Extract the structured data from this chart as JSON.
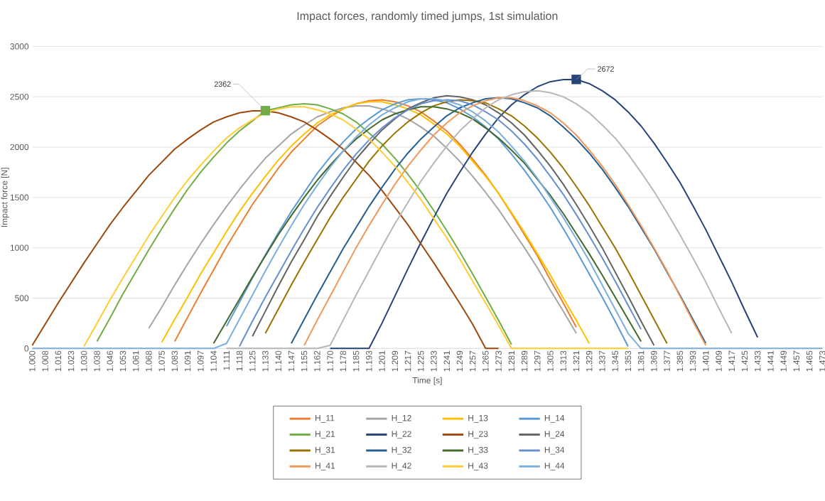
{
  "chart_data": {
    "type": "line",
    "title": "Impact forces, randomly timed jumps, 1st simulation",
    "xlabel": "Time [s]",
    "ylabel": "Impact force [N]",
    "categories": [
      "1.000",
      "1.008",
      "1.016",
      "1.023",
      "1.030",
      "1.038",
      "1.046",
      "1.053",
      "1.061",
      "1.068",
      "1.075",
      "1.083",
      "1.091",
      "1.097",
      "1.104",
      "1.111",
      "1.118",
      "1.125",
      "1.133",
      "1.140",
      "1.147",
      "1.155",
      "1.162",
      "1.170",
      "1.178",
      "1.185",
      "1.193",
      "1.201",
      "1.209",
      "1.217",
      "1.225",
      "1.233",
      "1.241",
      "1.249",
      "1.257",
      "1.265",
      "1.273",
      "1.281",
      "1.289",
      "1.297",
      "1.305",
      "1.313",
      "1.321",
      "1.329",
      "1.337",
      "1.345",
      "1.353",
      "1.361",
      "1.369",
      "1.377",
      "1.385",
      "1.393",
      "1.401",
      "1.409",
      "1.417",
      "1.425",
      "1.433",
      "1.441",
      "1.449",
      "1.457",
      "1.465",
      "1.473"
    ],
    "ylim": [
      0,
      3000
    ],
    "yticks": [
      0,
      500,
      1000,
      1500,
      2000,
      2500,
      3000
    ],
    "grid": "y",
    "legend": "bottom",
    "series": [
      {
        "name": "H_11",
        "color": "#ED7D31",
        "values": [
          null,
          null,
          null,
          null,
          null,
          null,
          null,
          null,
          null,
          null,
          null,
          70,
          310,
          550,
          780,
          1010,
          1220,
          1430,
          1610,
          1790,
          1950,
          2080,
          2210,
          2300,
          2380,
          2430,
          2460,
          2470,
          2450,
          2410,
          2350,
          2260,
          2160,
          2030,
          1880,
          1720,
          1540,
          1340,
          1130,
          920,
          680,
          450,
          210,
          null,
          null,
          null,
          null,
          null,
          null,
          null,
          null,
          null,
          null,
          null,
          null,
          null,
          null,
          null,
          null,
          null,
          null,
          null
        ]
      },
      {
        "name": "H_12",
        "color": "#A5A5A5",
        "values": [
          null,
          null,
          null,
          null,
          null,
          null,
          null,
          null,
          null,
          200,
          410,
          630,
          840,
          1040,
          1230,
          1410,
          1580,
          1740,
          1890,
          2010,
          2130,
          2220,
          2300,
          2350,
          2390,
          2410,
          2410,
          2380,
          2340,
          2280,
          2200,
          2110,
          1990,
          1860,
          1710,
          1550,
          1380,
          1190,
          1000,
          800,
          580,
          370,
          150,
          null,
          null,
          null,
          null,
          null,
          null,
          null,
          null,
          null,
          null,
          null,
          null,
          null,
          null,
          null,
          null,
          null,
          null,
          null
        ]
      },
      {
        "name": "H_13",
        "color": "#FFC000",
        "values": [
          null,
          null,
          null,
          null,
          null,
          null,
          null,
          null,
          null,
          null,
          60,
          290,
          510,
          740,
          950,
          1160,
          1360,
          1540,
          1710,
          1870,
          2010,
          2130,
          2240,
          2320,
          2380,
          2430,
          2450,
          2450,
          2420,
          2380,
          2320,
          2230,
          2130,
          2010,
          1860,
          1710,
          1540,
          1350,
          1150,
          940,
          730,
          500,
          280,
          50,
          null,
          null,
          null,
          null,
          null,
          null,
          null,
          null,
          null,
          null,
          null,
          null,
          null,
          null,
          null,
          null,
          null,
          null
        ]
      },
      {
        "name": "H_14",
        "color": "#5B9BD5",
        "values": [
          null,
          null,
          null,
          null,
          null,
          null,
          null,
          null,
          null,
          null,
          null,
          null,
          null,
          null,
          null,
          220,
          460,
          700,
          930,
          1150,
          1360,
          1550,
          1740,
          1900,
          2050,
          2180,
          2280,
          2370,
          2430,
          2470,
          2480,
          2470,
          2440,
          2380,
          2300,
          2200,
          2080,
          1930,
          1770,
          1590,
          1400,
          1190,
          970,
          740,
          510,
          270,
          20,
          null,
          null,
          null,
          null,
          null,
          null,
          null,
          null,
          null,
          null,
          null,
          null,
          null,
          null,
          null
        ]
      },
      {
        "name": "H_21",
        "color": "#70AD47",
        "values": [
          null,
          null,
          null,
          null,
          null,
          70,
          300,
          540,
          760,
          980,
          1190,
          1390,
          1580,
          1750,
          1900,
          2040,
          2160,
          2260,
          2362,
          2390,
          2420,
          2430,
          2420,
          2380,
          2330,
          2250,
          2140,
          2030,
          1890,
          1730,
          1560,
          1370,
          1170,
          960,
          740,
          510,
          280,
          40,
          null,
          null,
          null,
          null,
          null,
          null,
          null,
          null,
          null,
          null,
          null,
          null,
          null,
          null,
          null,
          null,
          null,
          null,
          null,
          null,
          null,
          null,
          null,
          null
        ]
      },
      {
        "name": "H_22",
        "color": "#264478",
        "values": [
          null,
          null,
          null,
          null,
          null,
          null,
          null,
          null,
          null,
          null,
          null,
          null,
          null,
          null,
          null,
          null,
          null,
          null,
          null,
          null,
          null,
          null,
          null,
          0,
          0,
          0,
          0,
          250,
          520,
          790,
          1050,
          1300,
          1540,
          1750,
          1950,
          2130,
          2290,
          2420,
          2520,
          2600,
          2650,
          2670,
          2672,
          2630,
          2560,
          2470,
          2350,
          2210,
          2040,
          1850,
          1650,
          1420,
          1180,
          920,
          660,
          380,
          110,
          null,
          null,
          null,
          null,
          null
        ]
      },
      {
        "name": "H_23",
        "color": "#9E480E",
        "values": [
          30,
          240,
          450,
          650,
          850,
          1040,
          1230,
          1400,
          1560,
          1720,
          1850,
          1980,
          2080,
          2170,
          2250,
          2300,
          2340,
          2360,
          2360,
          2340,
          2300,
          2250,
          2170,
          2080,
          1980,
          1850,
          1720,
          1570,
          1400,
          1230,
          1040,
          850,
          650,
          450,
          240,
          0,
          0,
          null,
          null,
          null,
          null,
          null,
          null,
          null,
          null,
          null,
          null,
          null,
          null,
          null,
          null,
          null,
          null,
          null,
          null,
          null,
          null,
          null,
          null,
          null,
          null,
          null
        ]
      },
      {
        "name": "H_24",
        "color": "#636363",
        "values": [
          null,
          null,
          null,
          null,
          null,
          null,
          null,
          null,
          null,
          null,
          null,
          null,
          null,
          null,
          null,
          null,
          null,
          120,
          370,
          620,
          860,
          1080,
          1310,
          1510,
          1700,
          1880,
          2030,
          2170,
          2280,
          2380,
          2440,
          2490,
          2510,
          2500,
          2470,
          2420,
          2340,
          2240,
          2120,
          1970,
          1810,
          1630,
          1430,
          1220,
          1000,
          760,
          520,
          270,
          30,
          null,
          null,
          null,
          null,
          null,
          null,
          null,
          null,
          null,
          null,
          null,
          null,
          null
        ]
      },
      {
        "name": "H_31",
        "color": "#997300",
        "values": [
          null,
          null,
          null,
          null,
          null,
          null,
          null,
          null,
          null,
          null,
          null,
          null,
          null,
          null,
          null,
          null,
          null,
          null,
          150,
          390,
          630,
          860,
          1080,
          1300,
          1500,
          1680,
          1860,
          2010,
          2140,
          2250,
          2340,
          2410,
          2450,
          2470,
          2460,
          2440,
          2380,
          2310,
          2210,
          2090,
          1950,
          1790,
          1610,
          1420,
          1210,
          1000,
          770,
          530,
          290,
          50,
          null,
          null,
          null,
          null,
          null,
          null,
          null,
          null,
          null,
          null,
          null,
          null
        ]
      },
      {
        "name": "H_32",
        "color": "#255E91",
        "values": [
          null,
          null,
          null,
          null,
          null,
          null,
          null,
          null,
          null,
          null,
          null,
          null,
          null,
          null,
          null,
          null,
          null,
          null,
          null,
          null,
          50,
          290,
          530,
          760,
          990,
          1200,
          1410,
          1600,
          1780,
          1940,
          2080,
          2200,
          2310,
          2390,
          2440,
          2480,
          2490,
          2480,
          2440,
          2390,
          2310,
          2200,
          2080,
          1940,
          1780,
          1600,
          1410,
          1200,
          990,
          760,
          530,
          290,
          50,
          null,
          null,
          null,
          null,
          null,
          null,
          null,
          null,
          null
        ]
      },
      {
        "name": "H_33",
        "color": "#43682B",
        "values": [
          null,
          null,
          null,
          null,
          null,
          null,
          null,
          null,
          null,
          null,
          null,
          null,
          null,
          null,
          50,
          270,
          490,
          710,
          920,
          1130,
          1320,
          1500,
          1670,
          1820,
          1960,
          2080,
          2180,
          2270,
          2330,
          2370,
          2400,
          2400,
          2380,
          2340,
          2280,
          2190,
          2090,
          1970,
          1840,
          1680,
          1520,
          1340,
          1140,
          940,
          730,
          510,
          290,
          70,
          null,
          null,
          null,
          null,
          null,
          null,
          null,
          null,
          null,
          null,
          null,
          null,
          null,
          null
        ]
      },
      {
        "name": "H_34",
        "color": "#698ED0",
        "values": [
          null,
          null,
          null,
          null,
          null,
          null,
          null,
          null,
          null,
          null,
          null,
          null,
          null,
          null,
          null,
          null,
          20,
          270,
          510,
          740,
          970,
          1190,
          1400,
          1590,
          1770,
          1930,
          2070,
          2190,
          2290,
          2370,
          2430,
          2460,
          2470,
          2460,
          2420,
          2350,
          2270,
          2160,
          2030,
          1880,
          1710,
          1530,
          1330,
          1120,
          900,
          670,
          430,
          190,
          null,
          null,
          null,
          null,
          null,
          null,
          null,
          null,
          null,
          null,
          null,
          null,
          null,
          null
        ]
      },
      {
        "name": "H_41",
        "color": "#F1975A",
        "values": [
          null,
          null,
          null,
          null,
          null,
          null,
          null,
          null,
          null,
          null,
          null,
          null,
          null,
          null,
          null,
          null,
          null,
          null,
          null,
          null,
          null,
          30,
          280,
          520,
          760,
          1000,
          1220,
          1430,
          1630,
          1810,
          1970,
          2120,
          2240,
          2340,
          2410,
          2460,
          2490,
          2490,
          2460,
          2410,
          2340,
          2240,
          2120,
          1970,
          1810,
          1630,
          1430,
          1220,
          1000,
          770,
          520,
          270,
          30,
          null,
          null,
          null,
          null,
          null,
          null,
          null,
          null,
          null
        ]
      },
      {
        "name": "H_42",
        "color": "#B7B7B7",
        "values": [
          null,
          null,
          null,
          null,
          null,
          null,
          null,
          null,
          null,
          null,
          null,
          null,
          null,
          null,
          null,
          0,
          0,
          0,
          0,
          0,
          0,
          0,
          0,
          30,
          280,
          530,
          770,
          1010,
          1240,
          1450,
          1660,
          1840,
          2010,
          2160,
          2280,
          2390,
          2470,
          2520,
          2550,
          2560,
          2540,
          2500,
          2430,
          2340,
          2220,
          2090,
          1930,
          1750,
          1560,
          1350,
          1130,
          900,
          660,
          400,
          150,
          null,
          null,
          null,
          null,
          null,
          null,
          null
        ]
      },
      {
        "name": "H_43",
        "color": "#FFCD33",
        "values": [
          null,
          null,
          null,
          null,
          20,
          250,
          480,
          700,
          910,
          1120,
          1310,
          1500,
          1670,
          1820,
          1960,
          2090,
          2190,
          2270,
          2340,
          2380,
          2400,
          2400,
          2370,
          2330,
          2270,
          2180,
          2080,
          1950,
          1810,
          1650,
          1480,
          1290,
          1100,
          890,
          670,
          450,
          230,
          0,
          0,
          0,
          0,
          0,
          0,
          0,
          0,
          0,
          0,
          null,
          null,
          null,
          null,
          null,
          null,
          null,
          null,
          null,
          null,
          null,
          null,
          null,
          null,
          null
        ]
      },
      {
        "name": "H_44",
        "color": "#7CAFDD",
        "values": [
          0,
          0,
          0,
          0,
          0,
          0,
          0,
          0,
          0,
          0,
          0,
          0,
          0,
          0,
          0,
          50,
          290,
          530,
          770,
          1000,
          1220,
          1430,
          1620,
          1800,
          1960,
          2100,
          2220,
          2320,
          2390,
          2450,
          2480,
          2480,
          2460,
          2420,
          2350,
          2260,
          2150,
          2010,
          1860,
          1690,
          1500,
          1300,
          1090,
          870,
          630,
          390,
          150,
          0,
          0,
          0,
          0,
          0,
          0,
          0,
          0,
          0,
          0,
          0,
          0,
          0,
          0,
          0
        ]
      }
    ],
    "annotations": [
      {
        "text": "2362",
        "x": "1.133",
        "y": 2362
      },
      {
        "text": "2672",
        "x": "1.321",
        "y": 2672
      }
    ]
  }
}
